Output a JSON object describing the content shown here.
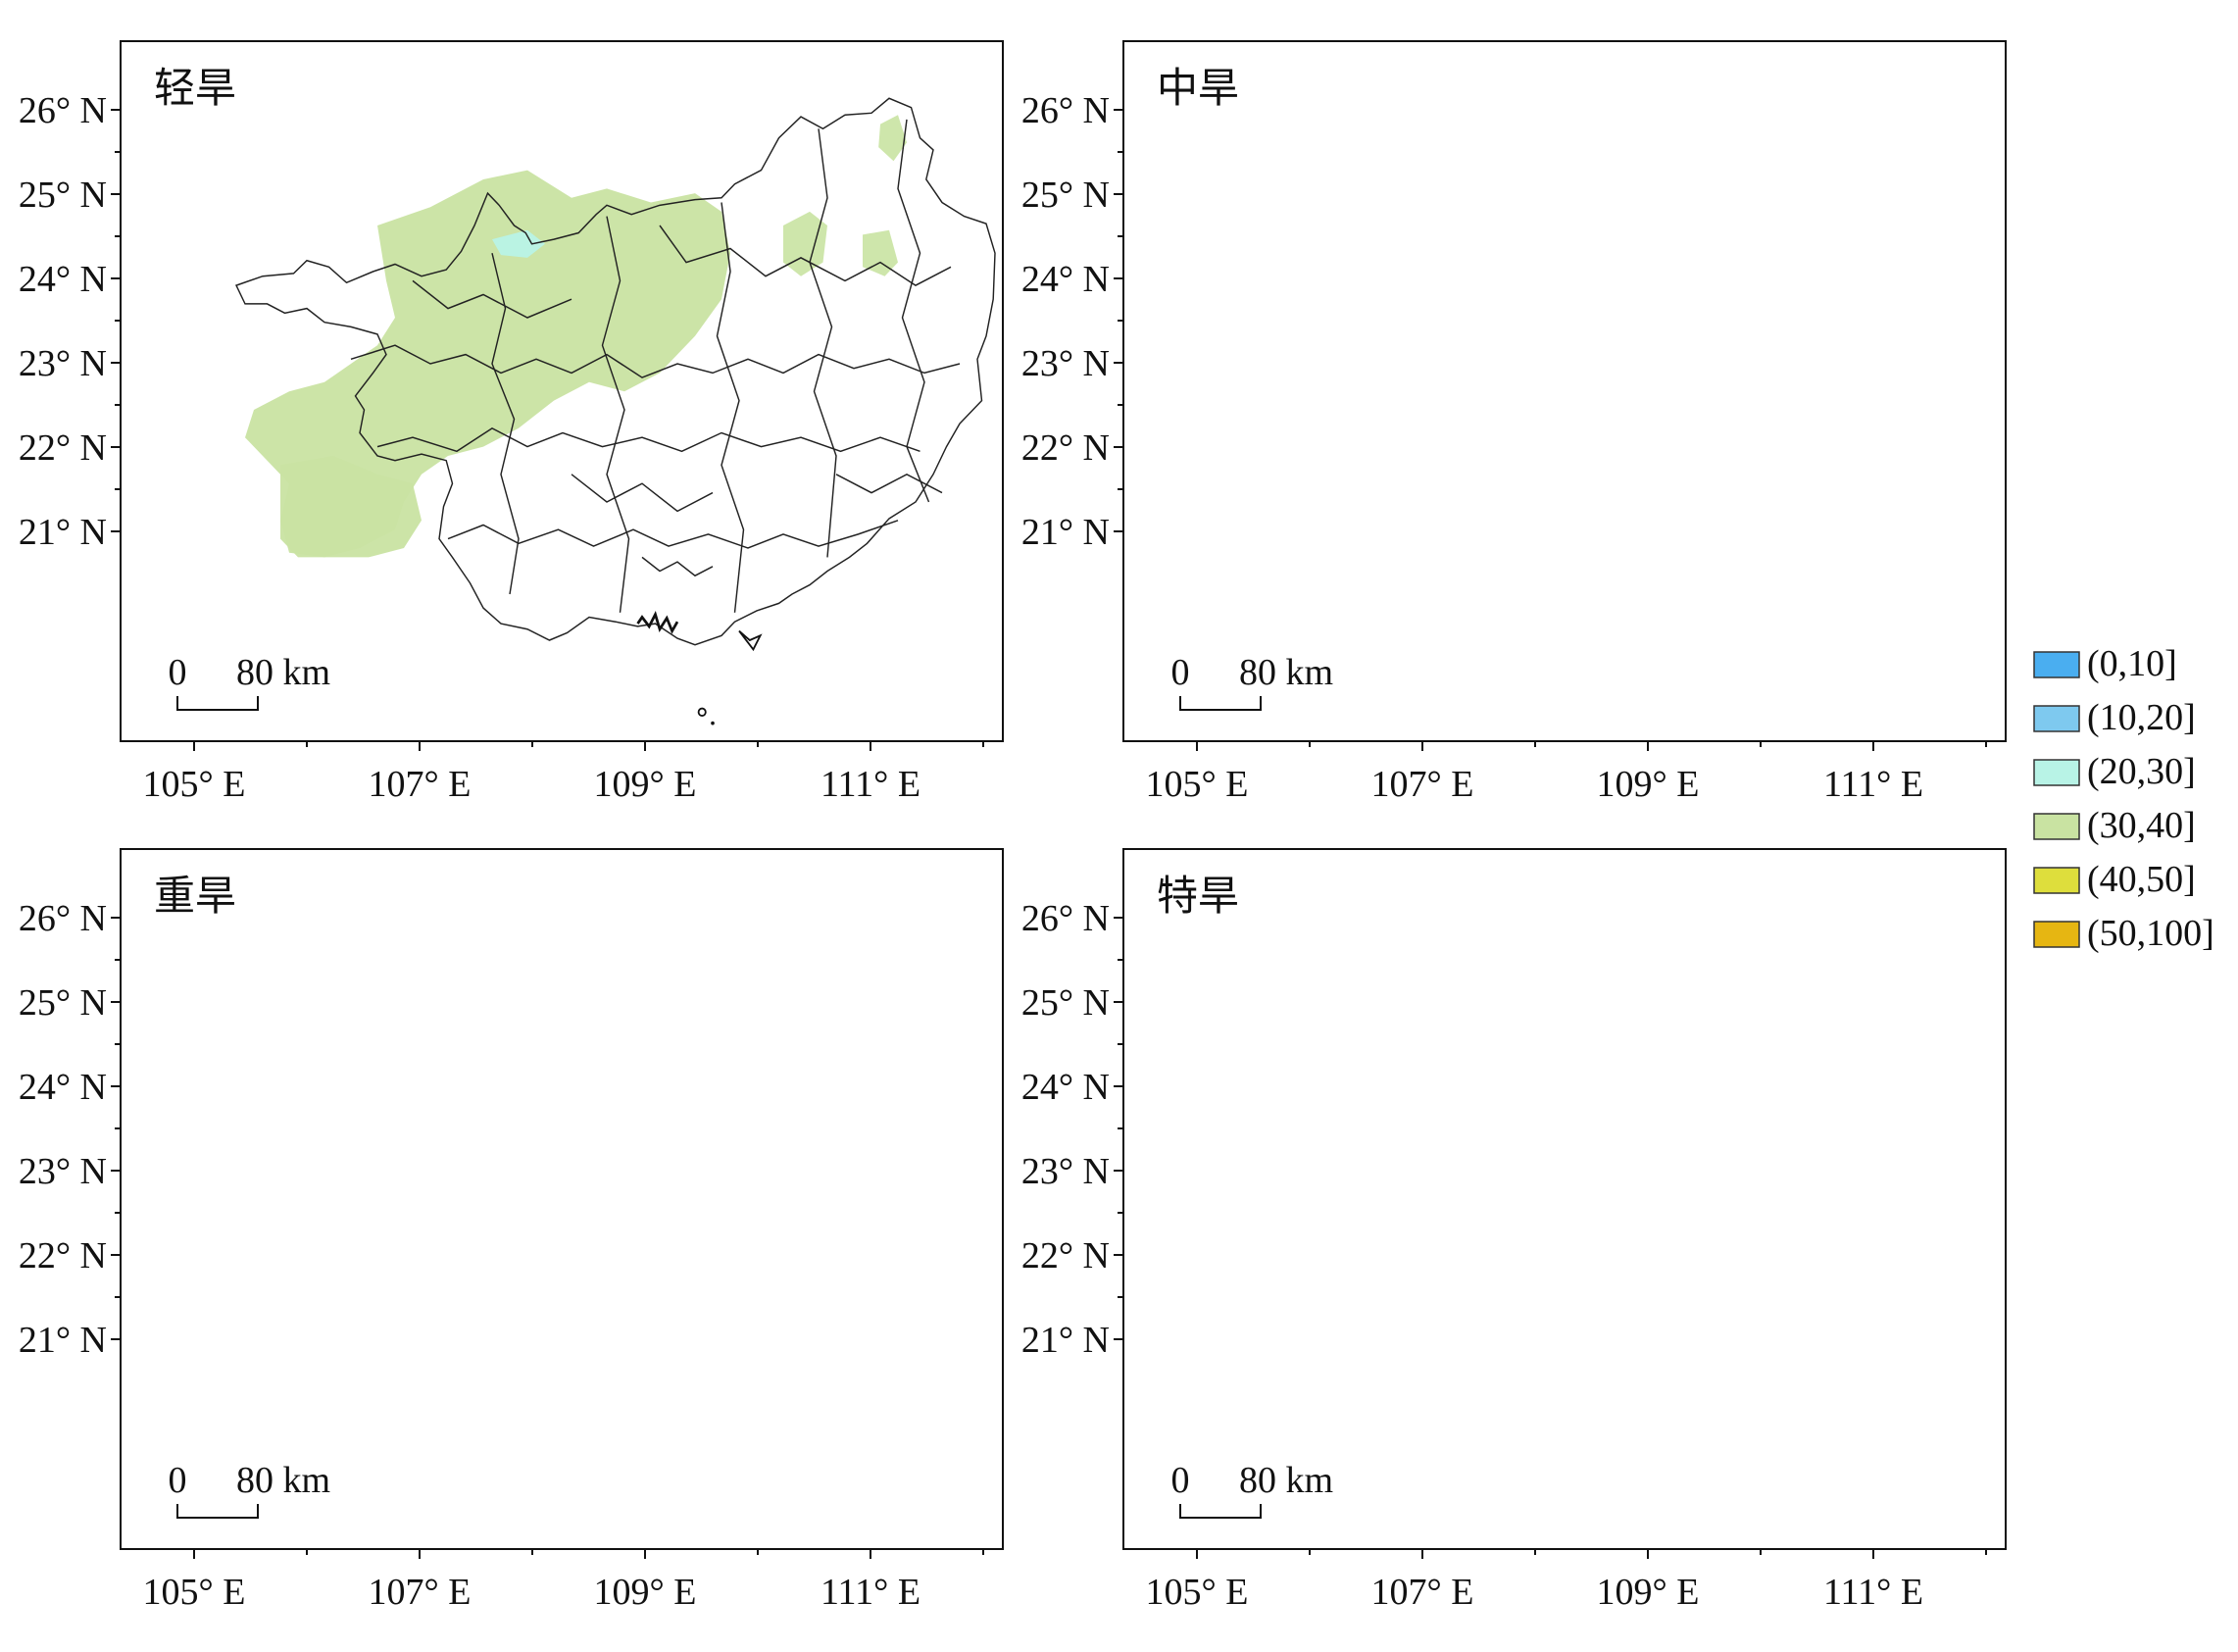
{
  "panels": [
    {
      "title": "轻旱",
      "fill_color": "#c9e3a2",
      "accent_color": "#b8f3e6"
    },
    {
      "title": "中旱",
      "fill_color": "#a8dcec",
      "accent_color": "#4aaef0"
    },
    {
      "title": "重旱",
      "fill_color": "#4aaef0",
      "accent_color": "#75c6f0"
    },
    {
      "title": "特旱",
      "fill_color": "#7ec9ef",
      "accent_color": "#7ec9ef"
    }
  ],
  "axes": {
    "lat_ticks": [
      "26° N",
      "25° N",
      "24° N",
      "23° N",
      "22° N",
      "21° N"
    ],
    "lon_ticks": [
      "105° E",
      "107° E",
      "109° E",
      "111° E"
    ]
  },
  "scale_bar": {
    "zero": "0",
    "distance": "80 km"
  },
  "legend": {
    "items": [
      {
        "label": "(0,10]",
        "color": "#4aaef0"
      },
      {
        "label": "(10,20]",
        "color": "#7ec9ef"
      },
      {
        "label": "(20,30]",
        "color": "#b8f3e6"
      },
      {
        "label": "(30,40]",
        "color": "#c9e3a2"
      },
      {
        "label": "(40,50]",
        "color": "#dede3c"
      },
      {
        "label": "(50,100]",
        "color": "#e6b612"
      }
    ]
  }
}
